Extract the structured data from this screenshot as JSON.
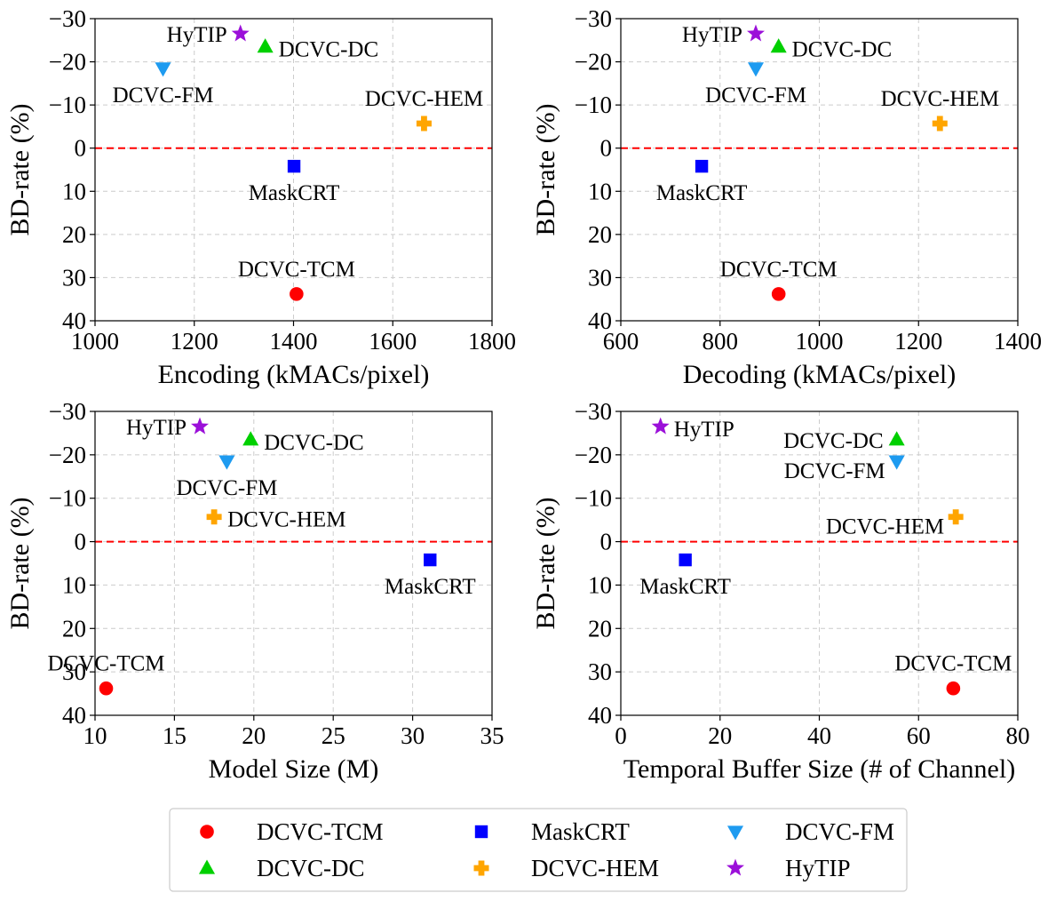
{
  "chart_data": [
    {
      "type": "scatter",
      "xlabel": "Encoding (kMACs/pixel)",
      "ylabel": "BD-rate (%)",
      "xlim": [
        1000,
        1800
      ],
      "ylim": [
        40,
        -30
      ],
      "xticks": [
        "1000",
        "1200",
        "1400",
        "1600",
        "1800"
      ],
      "yticks": [
        "−30",
        "−20",
        "−10",
        "0",
        "10",
        "20",
        "30",
        "40"
      ],
      "reference_line": 0,
      "grid": true,
      "points": [
        {
          "series": "DCVC-TCM",
          "x": 1406,
          "y": 33.8,
          "label": "DCVC-TCM",
          "label_pos": "above"
        },
        {
          "series": "DCVC-HEM",
          "x": 1663,
          "y": -5.7,
          "label": "DCVC-HEM",
          "label_pos": "above"
        },
        {
          "series": "DCVC-DC",
          "x": 1343,
          "y": -23.5,
          "label": "DCVC-DC",
          "label_pos": "right"
        },
        {
          "series": "DCVC-FM",
          "x": 1137,
          "y": -18.5,
          "label": "DCVC-FM",
          "label_pos": "below"
        },
        {
          "series": "MaskCRT",
          "x": 1401,
          "y": 4.2,
          "label": "MaskCRT",
          "label_pos": "below"
        },
        {
          "series": "HyTIP",
          "x": 1293,
          "y": -26.5,
          "label": "HyTIP",
          "label_pos": "left"
        }
      ]
    },
    {
      "type": "scatter",
      "xlabel": "Decoding (kMACs/pixel)",
      "ylabel": "BD-rate (%)",
      "xlim": [
        600,
        1400
      ],
      "ylim": [
        40,
        -30
      ],
      "xticks": [
        "600",
        "800",
        "1000",
        "1200",
        "1400"
      ],
      "yticks": [
        "−30",
        "−20",
        "−10",
        "0",
        "10",
        "20",
        "30",
        "40"
      ],
      "reference_line": 0,
      "grid": true,
      "points": [
        {
          "series": "DCVC-TCM",
          "x": 918,
          "y": 33.8,
          "label": "DCVC-TCM",
          "label_pos": "above"
        },
        {
          "series": "DCVC-HEM",
          "x": 1243,
          "y": -5.7,
          "label": "DCVC-HEM",
          "label_pos": "above"
        },
        {
          "series": "DCVC-DC",
          "x": 918,
          "y": -23.5,
          "label": "DCVC-DC",
          "label_pos": "right"
        },
        {
          "series": "DCVC-FM",
          "x": 872,
          "y": -18.5,
          "label": "DCVC-FM",
          "label_pos": "below"
        },
        {
          "series": "MaskCRT",
          "x": 763,
          "y": 4.2,
          "label": "MaskCRT",
          "label_pos": "below"
        },
        {
          "series": "HyTIP",
          "x": 872,
          "y": -26.5,
          "label": "HyTIP",
          "label_pos": "left"
        }
      ]
    },
    {
      "type": "scatter",
      "xlabel": "Model Size (M)",
      "ylabel": "BD-rate (%)",
      "xlim": [
        10,
        35
      ],
      "ylim": [
        40,
        -30
      ],
      "xticks": [
        "10",
        "15",
        "20",
        "25",
        "30",
        "35"
      ],
      "yticks": [
        "−30",
        "−20",
        "−10",
        "0",
        "10",
        "20",
        "30",
        "40"
      ],
      "reference_line": 0,
      "grid": true,
      "points": [
        {
          "series": "DCVC-TCM",
          "x": 10.7,
          "y": 33.8,
          "label": "DCVC-TCM",
          "label_pos": "above"
        },
        {
          "series": "DCVC-HEM",
          "x": 17.5,
          "y": -5.7,
          "label": "DCVC-HEM",
          "label_pos": "right"
        },
        {
          "series": "DCVC-DC",
          "x": 19.8,
          "y": -23.5,
          "label": "DCVC-DC",
          "label_pos": "right"
        },
        {
          "series": "DCVC-FM",
          "x": 18.3,
          "y": -18.5,
          "label": "DCVC-FM",
          "label_pos": "below"
        },
        {
          "series": "MaskCRT",
          "x": 31.1,
          "y": 4.2,
          "label": "MaskCRT",
          "label_pos": "below"
        },
        {
          "series": "HyTIP",
          "x": 16.6,
          "y": -26.5,
          "label": "HyTIP",
          "label_pos": "left"
        }
      ]
    },
    {
      "type": "scatter",
      "xlabel": "Temporal Buffer Size (# of Channel)",
      "ylabel": "BD-rate (%)",
      "xlim": [
        0,
        80
      ],
      "ylim": [
        40,
        -30
      ],
      "xticks": [
        "0",
        "20",
        "40",
        "60",
        "80"
      ],
      "yticks": [
        "−30",
        "−20",
        "−10",
        "0",
        "10",
        "20",
        "30",
        "40"
      ],
      "reference_line": 0,
      "grid": true,
      "points": [
        {
          "series": "DCVC-TCM",
          "x": 67,
          "y": 33.8,
          "label": "DCVC-TCM",
          "label_pos": "above"
        },
        {
          "series": "DCVC-HEM",
          "x": 67.5,
          "y": -5.7,
          "label": "DCVC-HEM",
          "label_pos": "left-below"
        },
        {
          "series": "DCVC-DC",
          "x": 55.6,
          "y": -23.5,
          "label": "DCVC-DC",
          "label_pos": "left"
        },
        {
          "series": "DCVC-FM",
          "x": 55.6,
          "y": -18.5,
          "label": "DCVC-FM",
          "label_pos": "left-below"
        },
        {
          "series": "MaskCRT",
          "x": 13,
          "y": 4.2,
          "label": "MaskCRT",
          "label_pos": "below"
        },
        {
          "series": "HyTIP",
          "x": 8,
          "y": -26.5,
          "label": "HyTIP",
          "label_pos": "right"
        }
      ]
    }
  ],
  "legend": {
    "placement": "bottom",
    "entries": [
      {
        "name": "DCVC-TCM",
        "marker": "circle",
        "color": "#ff0000"
      },
      {
        "name": "DCVC-DC",
        "marker": "triangle-up",
        "color": "#00d000"
      },
      {
        "name": "MaskCRT",
        "marker": "square",
        "color": "#0000ff"
      },
      {
        "name": "DCVC-HEM",
        "marker": "plus",
        "color": "#ffa500"
      },
      {
        "name": "DCVC-FM",
        "marker": "triangle-down",
        "color": "#1e9bf0"
      },
      {
        "name": "HyTIP",
        "marker": "star",
        "color": "#9b10d9"
      }
    ]
  }
}
